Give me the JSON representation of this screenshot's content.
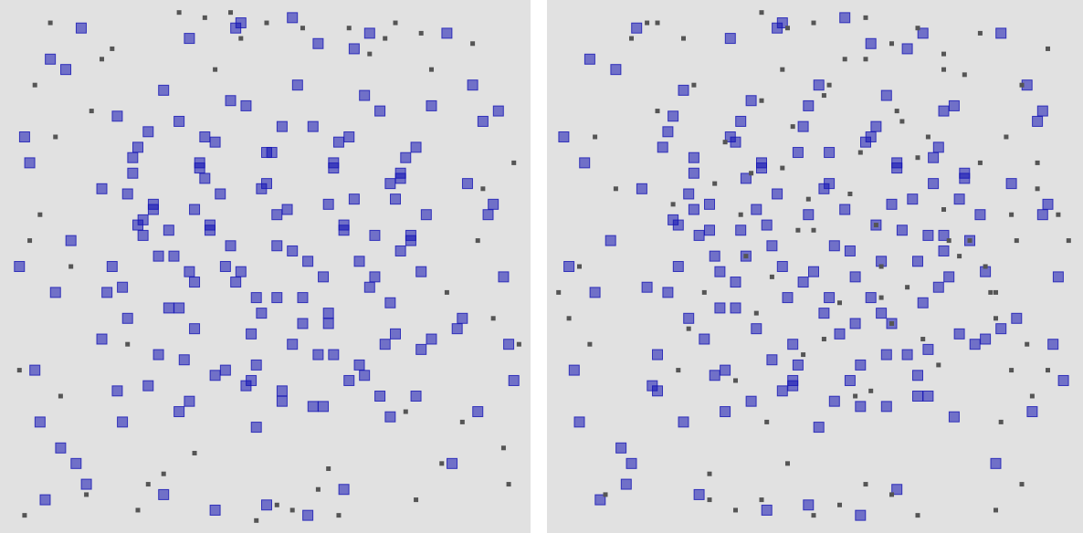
{
  "chart_data": [
    {
      "type": "scatter",
      "xlim": [
        0,
        100
      ],
      "ylim": [
        0,
        100
      ],
      "series": [
        {
          "color": "#555555",
          "x": [
            3,
            8,
            15,
            25,
            38,
            52,
            66,
            79,
            90,
            97,
            2,
            6,
            94,
            98,
            5,
            96,
            12,
            88,
            20,
            80,
            30,
            45,
            60,
            75,
            85,
            10,
            40,
            55,
            70,
            92,
            4,
            99,
            16,
            84,
            48,
            33,
            64,
            27,
            73,
            57,
            9,
            91,
            18,
            82,
            36,
            62,
            50,
            23,
            77,
            43
          ],
          "y": [
            2,
            97,
            6,
            3,
            98,
            4,
            96,
            5,
            93,
            8,
            30,
            60,
            40,
            70,
            85,
            15,
            50,
            20,
            92,
            95,
            10,
            94,
            7,
            97,
            45,
            25,
            88,
            3,
            91,
            65,
            55,
            35,
            80,
            12,
            1,
            99,
            2,
            8,
            94,
            96,
            75,
            55,
            90,
            88,
            14,
            11,
            97,
            35,
            22,
            99
          ]
        },
        {
          "color": "#1414b4",
          "x": [
            22,
            35,
            48,
            61,
            74,
            29,
            42,
            55,
            68,
            80,
            19,
            31,
            44,
            57,
            70,
            26,
            39,
            52,
            65,
            78,
            24,
            37,
            50,
            63,
            76,
            21,
            33,
            46,
            59,
            72,
            27,
            40,
            53,
            66,
            79,
            23,
            36,
            49,
            62,
            75,
            20,
            32,
            45,
            58,
            71,
            28,
            41,
            54,
            67,
            81,
            25,
            38,
            51,
            64,
            77,
            30,
            43,
            56,
            69,
            82,
            18,
            34,
            47,
            60,
            73,
            22,
            35,
            48,
            61,
            74,
            26,
            39,
            52,
            65,
            78,
            24,
            37,
            50,
            63,
            76,
            21,
            33,
            46,
            59,
            72,
            29,
            42,
            55,
            68,
            80,
            23,
            36,
            49,
            62,
            75,
            27,
            40,
            53,
            66,
            79,
            5,
            12,
            88,
            94,
            3,
            96,
            8,
            91,
            15,
            85,
            4,
            10,
            90,
            97,
            7,
            93,
            14,
            86,
            2,
            98,
            30,
            50,
            70,
            45,
            60,
            9,
            92,
            40,
            55,
            65,
            11,
            89,
            6,
            95,
            13,
            87,
            35,
            58,
            44,
            67,
            33,
            47,
            71,
            18,
            82,
            25,
            52,
            63,
            38,
            76,
            57,
            28,
            43,
            69,
            36,
            74,
            48,
            31,
            62,
            53
          ],
          "y": [
            20,
            24,
            19,
            23,
            21,
            33,
            30,
            35,
            31,
            34,
            45,
            42,
            47,
            44,
            46,
            56,
            58,
            54,
            57,
            55,
            68,
            70,
            66,
            69,
            67,
            79,
            78,
            81,
            77,
            80,
            27,
            29,
            26,
            28,
            25,
            40,
            38,
            41,
            39,
            37,
            50,
            52,
            49,
            51,
            48,
            62,
            64,
            61,
            63,
            60,
            73,
            75,
            72,
            74,
            71,
            84,
            82,
            85,
            83,
            81,
            36,
            32,
            37,
            33,
            35,
            46,
            49,
            44,
            48,
            43,
            59,
            57,
            60,
            58,
            56,
            71,
            69,
            72,
            70,
            68,
            26,
            22,
            27,
            23,
            25,
            52,
            50,
            53,
            51,
            49,
            64,
            61,
            65,
            62,
            63,
            76,
            74,
            77,
            75,
            73,
            30,
            55,
            40,
            62,
            75,
            48,
            90,
            22,
            8,
            95,
            70,
            15,
            85,
            35,
            5,
            60,
            96,
            12,
            50,
            28,
            6,
            4,
            95,
            97,
            93,
            45,
            78,
            3,
            98,
            7,
            88,
            66,
            20,
            80,
            12,
            38,
            94,
            2,
            96,
            92,
            42,
            28,
            56,
            65,
            36,
            58,
            44,
            33,
            67,
            53,
            39,
            61,
            54,
            29,
            47,
            66,
            31,
            57,
            41,
            24
          ]
        }
      ]
    },
    {
      "type": "scatter",
      "xlim": [
        0,
        100
      ],
      "ylim": [
        0,
        100
      ],
      "series": [
        {
          "color": "#1414b4",
          "x": [
            25,
            38,
            51,
            64,
            77,
            20,
            33,
            46,
            59,
            72,
            22,
            35,
            48,
            61,
            74,
            28,
            41,
            54,
            67,
            80,
            27,
            40,
            53,
            66,
            79,
            23,
            36,
            49,
            62,
            75,
            19,
            31,
            44,
            57,
            70,
            26,
            39,
            52,
            65,
            78,
            24,
            37,
            50,
            63,
            76,
            30,
            43,
            56,
            69,
            82,
            21,
            34,
            47,
            60,
            73,
            25,
            38,
            51,
            64,
            77,
            29,
            42,
            55,
            68,
            81,
            18,
            32,
            45,
            58,
            71,
            23,
            36,
            49,
            62,
            75,
            27,
            40,
            53,
            66,
            79,
            20,
            33,
            46,
            59,
            72,
            31,
            44,
            57,
            70,
            83,
            26,
            39,
            52,
            65,
            78,
            22,
            35,
            48,
            61,
            74,
            4,
            11,
            89,
            95,
            2,
            97,
            7,
            92,
            14,
            86,
            6,
            13,
            91,
            96,
            9,
            94,
            16,
            85,
            3,
            98,
            28,
            49,
            71,
            44,
            61,
            8,
            93,
            41,
            56,
            66,
            12,
            88,
            5,
            94,
            15,
            86,
            34,
            59,
            43,
            68,
            32,
            46,
            72,
            17,
            83,
            24,
            53,
            64,
            37,
            75,
            58,
            27,
            42,
            70,
            35,
            73,
            47,
            30,
            63,
            54
          ],
          "y": [
            20,
            24,
            19,
            23,
            21,
            33,
            30,
            35,
            31,
            34,
            45,
            42,
            47,
            44,
            46,
            56,
            58,
            54,
            57,
            55,
            68,
            70,
            66,
            69,
            67,
            79,
            78,
            81,
            77,
            80,
            27,
            29,
            26,
            28,
            25,
            40,
            38,
            41,
            39,
            37,
            50,
            52,
            49,
            51,
            48,
            62,
            64,
            61,
            63,
            60,
            73,
            75,
            72,
            74,
            71,
            84,
            82,
            85,
            83,
            81,
            36,
            32,
            37,
            33,
            35,
            46,
            49,
            44,
            48,
            43,
            59,
            57,
            60,
            58,
            56,
            71,
            69,
            72,
            70,
            68,
            26,
            22,
            27,
            23,
            25,
            52,
            50,
            53,
            51,
            49,
            64,
            61,
            65,
            62,
            63,
            76,
            74,
            77,
            75,
            73,
            30,
            55,
            40,
            62,
            75,
            48,
            90,
            22,
            8,
            95,
            70,
            15,
            85,
            35,
            5,
            60,
            96,
            12,
            50,
            28,
            6,
            4,
            95,
            97,
            93,
            45,
            78,
            3,
            98,
            7,
            88,
            66,
            20,
            80,
            12,
            38,
            94,
            2,
            96,
            92,
            42,
            28,
            56,
            65,
            36,
            58,
            44,
            33,
            67,
            53,
            39,
            61,
            54,
            29,
            47,
            66,
            31,
            57,
            41,
            24
          ]
        },
        {
          "color": "#555555",
          "x": [
            35,
            48,
            61,
            74,
            29,
            42,
            55,
            68,
            23,
            80,
            31,
            44,
            57,
            70,
            26,
            39,
            52,
            65,
            78,
            20,
            37,
            50,
            63,
            76,
            33,
            46,
            59,
            72,
            24,
            85,
            40,
            53,
            66,
            79,
            36,
            49,
            62,
            75,
            27,
            88,
            10,
            90,
            15,
            95,
            5,
            85,
            45,
            55,
            65,
            35,
            3,
            97,
            8,
            92,
            18,
            82,
            50,
            60,
            40,
            70,
            30,
            45,
            60,
            75,
            88,
            12,
            93,
            7,
            99,
            1,
            41,
            58,
            67,
            52,
            47,
            63,
            38,
            71,
            56,
            44,
            86,
            91,
            84,
            89,
            93,
            87,
            90,
            83,
            95,
            82,
            25,
            50,
            75,
            30,
            60,
            85,
            40,
            70,
            20,
            65
          ],
          "y": [
            28,
            33,
            26,
            31,
            45,
            48,
            43,
            46,
            62,
            55,
            66,
            69,
            64,
            71,
            38,
            41,
            36,
            39,
            52,
            80,
            52,
            57,
            50,
            55,
            74,
            77,
            72,
            75,
            30,
            40,
            82,
            85,
            80,
            87,
            60,
            63,
            58,
            61,
            85,
            60,
            6,
            8,
            94,
            92,
            50,
            45,
            96,
            4,
            93,
            3,
            40,
            60,
            75,
            25,
            97,
            95,
            2,
            98,
            5,
            96,
            10,
            12,
            90,
            88,
            30,
            65,
            70,
            35,
            55,
            45,
            20,
            25,
            78,
            83,
            57,
            44,
            68,
            36,
            90,
            88,
            20,
            35,
            45,
            55,
            65,
            75,
            85,
            50,
            30,
            70,
            94,
            97,
            91,
            5,
            8,
            3,
            99,
            2,
            97,
            6
          ]
        }
      ]
    }
  ]
}
